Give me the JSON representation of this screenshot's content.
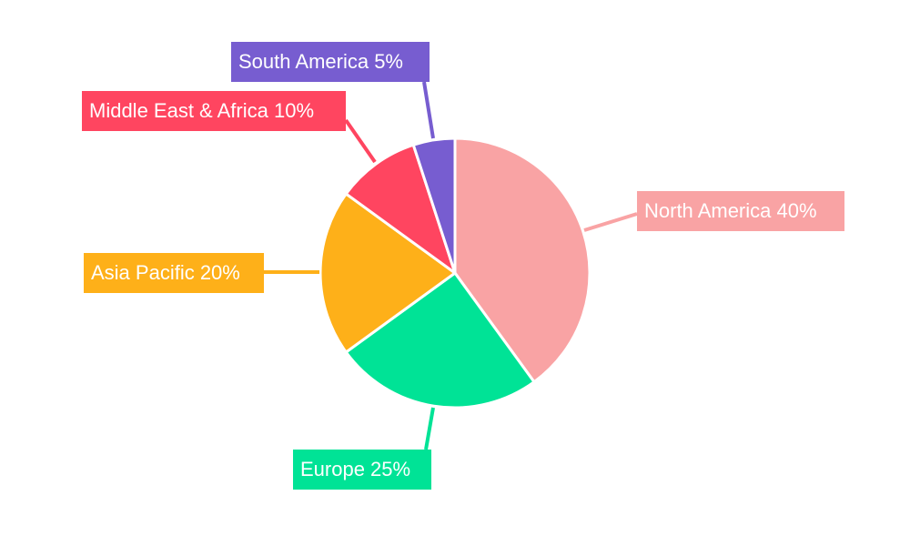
{
  "chart_data": {
    "type": "pie",
    "categories": [
      "North America",
      "Europe",
      "Asia Pacific",
      "Middle East & Africa",
      "South America"
    ],
    "values": [
      40,
      25,
      20,
      10,
      5
    ],
    "labels": [
      "North America 40%",
      "Europe 25%",
      "Asia Pacific 20%",
      "Middle East & Africa 10%",
      "South America 5%"
    ],
    "colors": [
      "#F9A3A4",
      "#00E396",
      "#FEB019",
      "#FF4560",
      "#775DD0"
    ],
    "start_angle": "top",
    "direction": "clockwise",
    "legend": "none"
  }
}
